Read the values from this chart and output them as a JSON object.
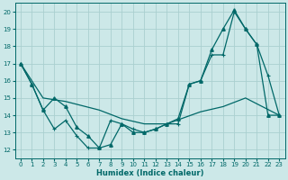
{
  "xlabel": "Humidex (Indice chaleur)",
  "background_color": "#cce8e8",
  "grid_color": "#aacfcf",
  "line_color": "#006868",
  "xlim": [
    -0.5,
    23.5
  ],
  "ylim": [
    11.5,
    20.5
  ],
  "xticks": [
    0,
    1,
    2,
    3,
    4,
    5,
    6,
    7,
    8,
    9,
    10,
    11,
    12,
    13,
    14,
    15,
    16,
    17,
    18,
    19,
    20,
    21,
    22,
    23
  ],
  "yticks": [
    12,
    13,
    14,
    15,
    16,
    17,
    18,
    19,
    20
  ],
  "line_wavy": {
    "x": [
      0,
      1,
      2,
      3,
      4,
      5,
      6,
      7,
      8,
      9,
      10,
      11,
      12,
      13,
      14,
      15,
      16,
      17,
      18,
      19,
      20,
      21,
      22,
      23
    ],
    "y": [
      17,
      15.8,
      14.3,
      13.2,
      13.7,
      12.8,
      12.1,
      12.1,
      13.7,
      13.5,
      13.2,
      13.0,
      13.2,
      13.5,
      13.5,
      15.8,
      16.0,
      17.5,
      17.5,
      20.0,
      19.0,
      18.1,
      16.3,
      14.0
    ]
  },
  "line_diagonal": {
    "x": [
      0,
      2,
      4,
      7,
      9,
      11,
      13,
      16,
      18,
      20,
      23
    ],
    "y": [
      17,
      15.0,
      14.8,
      14.3,
      13.8,
      13.5,
      13.5,
      14.2,
      14.5,
      15.0,
      14.0
    ]
  },
  "line_peak": {
    "x": [
      0,
      1,
      2,
      3,
      4,
      5,
      6,
      7,
      8,
      9,
      10,
      11,
      12,
      13,
      14,
      15,
      16,
      17,
      18,
      19,
      20,
      21,
      22,
      23
    ],
    "y": [
      17,
      15.8,
      14.3,
      15.0,
      14.5,
      13.3,
      12.8,
      12.1,
      12.3,
      13.5,
      13.0,
      13.0,
      13.2,
      13.5,
      13.8,
      15.8,
      16.0,
      17.8,
      19.0,
      20.1,
      19.0,
      18.1,
      14.0,
      14.0
    ]
  }
}
